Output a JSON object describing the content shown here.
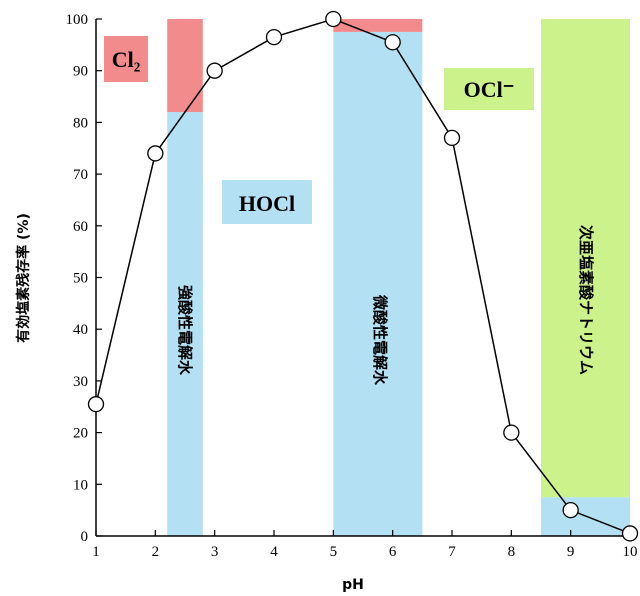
{
  "chart_data": {
    "type": "line",
    "title": "",
    "xlabel": "pH",
    "ylabel": "有効塩素残存率 (%)",
    "xlim": [
      1,
      10
    ],
    "ylim": [
      0,
      100
    ],
    "x_ticks": [
      "1",
      "2",
      "3",
      "4",
      "5",
      "6",
      "7",
      "8",
      "9",
      "10"
    ],
    "y_ticks": [
      "0",
      "10",
      "20",
      "30",
      "40",
      "50",
      "60",
      "70",
      "80",
      "90",
      "100"
    ],
    "grid": false,
    "series": [
      {
        "x": [
          1,
          2,
          3,
          4,
          5,
          6,
          7,
          8,
          9,
          10
        ],
        "y": [
          25.5,
          74,
          90,
          96.5,
          100,
          95.5,
          77,
          20,
          5,
          0.5
        ]
      }
    ],
    "regions": [
      {
        "name": "強酸性電解水",
        "x_range": [
          2.2,
          2.8
        ],
        "lower": {
          "color": "#b3e0f2",
          "y_range": [
            0,
            82
          ]
        },
        "upper": {
          "color": "#f28c8c",
          "y_range": [
            82,
            100
          ]
        }
      },
      {
        "name": "微酸性電解水",
        "x_range": [
          5.0,
          6.5
        ],
        "lower": {
          "color": "#b3e0f2",
          "y_range": [
            0,
            97.5
          ]
        },
        "upper": {
          "color": "#f28c8c",
          "y_range": [
            97.5,
            100
          ]
        }
      },
      {
        "name": "次亜塩素酸ナトリウム",
        "x_range": [
          8.5,
          10
        ],
        "lower": {
          "color": "#b3e0f2",
          "y_range": [
            0,
            7.5
          ]
        },
        "upper": {
          "color": "#ccf28c",
          "y_range": [
            7.5,
            100
          ]
        }
      }
    ],
    "species_labels": [
      {
        "text": "Cl₂",
        "color": "#f28c8c"
      },
      {
        "text": "HOCl",
        "color": "#b3e0f2"
      },
      {
        "text": "OCl⁻",
        "color": "#ccf28c"
      }
    ]
  }
}
